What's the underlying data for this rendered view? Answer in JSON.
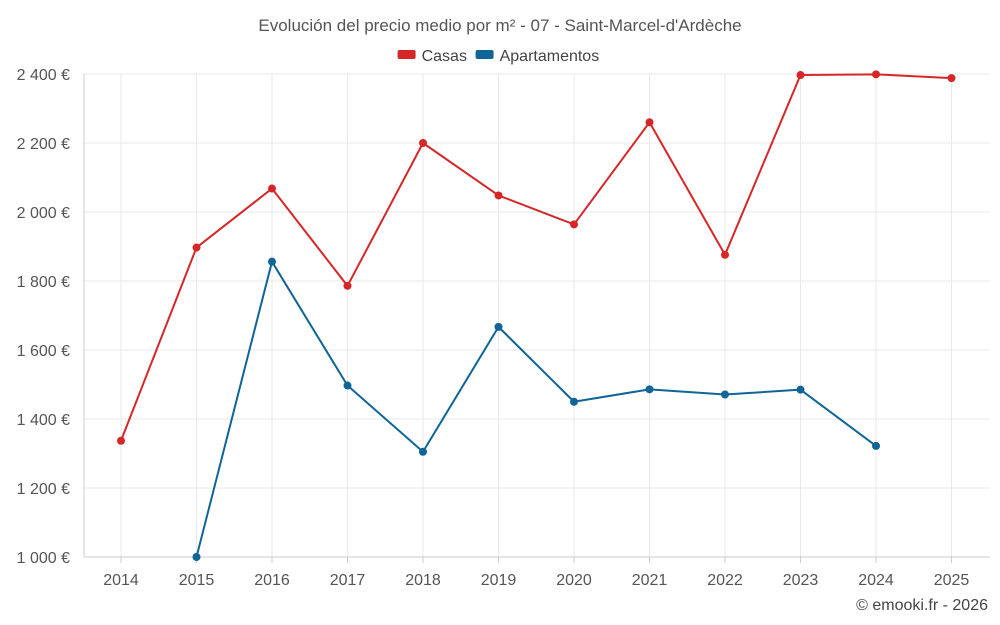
{
  "chart_data": {
    "type": "line",
    "title": "Evolución del precio medio por m² - 07 - Saint-Marcel-d'Ardèche",
    "xlabel": "",
    "ylabel": "",
    "categories": [
      "2014",
      "2015",
      "2016",
      "2017",
      "2018",
      "2019",
      "2020",
      "2021",
      "2022",
      "2023",
      "2024",
      "2025"
    ],
    "ylim": [
      1000,
      2400
    ],
    "yticks": [
      1000,
      1200,
      1400,
      1600,
      1800,
      2000,
      2200,
      2400
    ],
    "ytick_labels": [
      "1 000 €",
      "1 200 €",
      "1 400 €",
      "1 600 €",
      "1 800 €",
      "2 000 €",
      "2 200 €",
      "2 400 €"
    ],
    "legend_position": "top-center",
    "grid": true,
    "series": [
      {
        "name": "Casas",
        "color": "#d62728",
        "values": [
          1337,
          1897,
          2068,
          1786,
          2200,
          2048,
          1964,
          2260,
          1876,
          2397,
          2399,
          2388
        ]
      },
      {
        "name": "Apartamentos",
        "color": "#0f6498",
        "values": [
          null,
          1000,
          1856,
          1497,
          1305,
          1667,
          1450,
          1486,
          1471,
          1485,
          1322,
          null
        ]
      }
    ]
  },
  "watermark": "© emooki.fr - 2026"
}
